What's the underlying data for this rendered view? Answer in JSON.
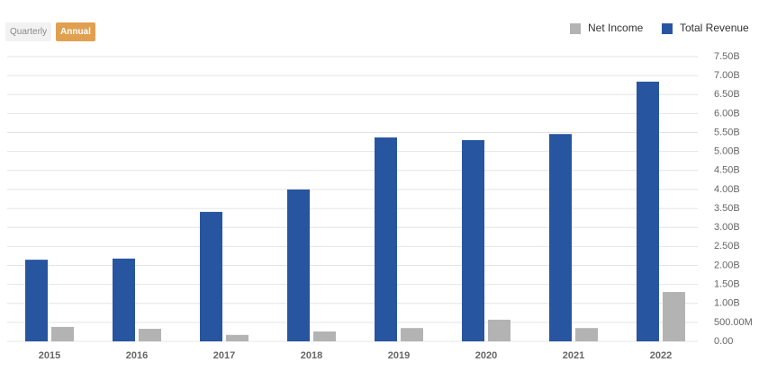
{
  "period_options": [
    "Quarterly",
    "Annual"
  ],
  "selected_period": "Annual",
  "chart_data": {
    "type": "bar",
    "categories": [
      "2015",
      "2016",
      "2017",
      "2018",
      "2019",
      "2020",
      "2021",
      "2022"
    ],
    "series": [
      {
        "name": "Net Income",
        "color": "#b3b3b3",
        "values": [
          0.38,
          0.33,
          0.17,
          0.26,
          0.35,
          0.57,
          0.35,
          1.3
        ]
      },
      {
        "name": "Total Revenue",
        "color": "#2855a0",
        "values": [
          2.15,
          2.18,
          3.41,
          4.0,
          5.37,
          5.3,
          5.46,
          6.84
        ]
      }
    ],
    "ylim": [
      0,
      7.5
    ],
    "yticks": [
      {
        "value": 0,
        "label": "0.00"
      },
      {
        "value": 0.5,
        "label": "500.00M"
      },
      {
        "value": 1,
        "label": "1.00B"
      },
      {
        "value": 1.5,
        "label": "1.50B"
      },
      {
        "value": 2,
        "label": "2.00B"
      },
      {
        "value": 2.5,
        "label": "2.50B"
      },
      {
        "value": 3,
        "label": "3.00B"
      },
      {
        "value": 3.5,
        "label": "3.50B"
      },
      {
        "value": 4,
        "label": "4.00B"
      },
      {
        "value": 4.5,
        "label": "4.50B"
      },
      {
        "value": 5,
        "label": "5.00B"
      },
      {
        "value": 5.5,
        "label": "5.50B"
      },
      {
        "value": 6,
        "label": "6.00B"
      },
      {
        "value": 6.5,
        "label": "6.50B"
      },
      {
        "value": 7,
        "label": "7.00B"
      },
      {
        "value": 7.5,
        "label": "7.50B"
      }
    ],
    "grid": true,
    "legend": "top-right"
  }
}
